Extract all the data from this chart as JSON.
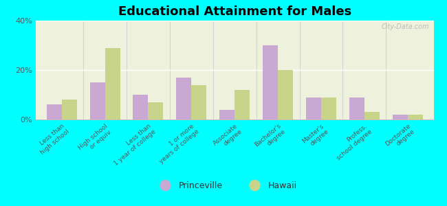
{
  "title": "Educational Attainment for Males",
  "categories": [
    "Less than\nhigh school",
    "High school\nor equiv.",
    "Less than\n1 year of college",
    "1 or more\nyears of college",
    "Associate\ndegree",
    "Bachelor's\ndegree",
    "Master's\ndegree",
    "Profess.\nschool degree",
    "Doctorate\ndegree"
  ],
  "princeville": [
    6,
    15,
    10,
    17,
    4,
    30,
    9,
    9,
    2
  ],
  "hawaii": [
    8,
    29,
    7,
    14,
    12,
    20,
    9,
    3,
    2
  ],
  "princeville_color": "#c9a8d4",
  "hawaii_color": "#c8d48a",
  "background_color": "#00ffff",
  "plot_bg": "#eef2dd",
  "ylim": [
    0,
    40
  ],
  "yticks": [
    0,
    20,
    40
  ],
  "ytick_labels": [
    "0%",
    "20%",
    "40%"
  ],
  "legend_princeville": "Princeville",
  "legend_hawaii": "Hawaii",
  "bar_width": 0.35,
  "title_fontsize": 13,
  "tick_fontsize": 6.5,
  "legend_fontsize": 9,
  "watermark": "City-Data.com"
}
